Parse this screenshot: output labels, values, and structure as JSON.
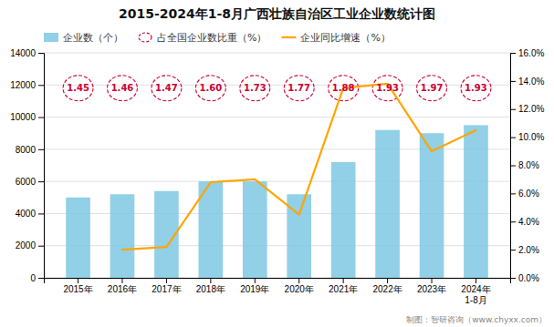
{
  "chart_data": {
    "type": "bar",
    "title": "2015-2024年1-8月广西壮族自治区工业企业数统计图",
    "categories": [
      "2015年",
      "2016年",
      "2017年",
      "2018年",
      "2019年",
      "2020年",
      "2021年",
      "2022年",
      "2023年",
      "2024年\n1-8月"
    ],
    "series": [
      {
        "name": "企业数（个）",
        "type": "bar",
        "color": "#7ec8e3",
        "values": [
          5000,
          5200,
          5400,
          6000,
          6000,
          5200,
          7200,
          9200,
          9000,
          9500
        ]
      },
      {
        "name": "占全国企业数比重（%）",
        "type": "text",
        "marker": "ellipse",
        "line_style": "dashed",
        "color": "#cc0033",
        "data_labels": true,
        "values": [
          1.45,
          1.46,
          1.47,
          1.6,
          1.73,
          1.77,
          1.88,
          1.93,
          1.97,
          1.93
        ],
        "value_labels": [
          "1.45",
          "1.46",
          "1.47",
          "1.60",
          "1.73",
          "1.77",
          "1.88",
          "1.93",
          "1.97",
          "1.93"
        ]
      },
      {
        "name": "企业同比增速（%）",
        "type": "line",
        "axis": "y2",
        "color": "#FFA500",
        "values": [
          null,
          0.02,
          0.022,
          0.068,
          0.07,
          0.045,
          0.135,
          0.138,
          0.09,
          0.105
        ]
      }
    ],
    "ylim": [
      0,
      14000
    ],
    "yticks": [
      0,
      2000,
      4000,
      6000,
      8000,
      10000,
      12000,
      14000
    ],
    "y2lim": [
      0.0,
      0.16
    ],
    "y2ticks": [
      {
        "value": 0.0,
        "label": "0.0%"
      },
      {
        "value": 0.02,
        "label": "2.0%"
      },
      {
        "value": 0.04,
        "label": "4.0%"
      },
      {
        "value": 0.06,
        "label": "6.0%"
      },
      {
        "value": 0.08,
        "label": "8.0%"
      },
      {
        "value": 0.1,
        "label": "10.0%"
      },
      {
        "value": 0.12,
        "label": "12.0%"
      },
      {
        "value": 0.14,
        "label": "14.0%"
      },
      {
        "value": 0.16,
        "label": "16.0%"
      }
    ],
    "grid": true,
    "legend": "top-left",
    "footnote": "制图：智研咨询（www.chyxx.com）"
  }
}
